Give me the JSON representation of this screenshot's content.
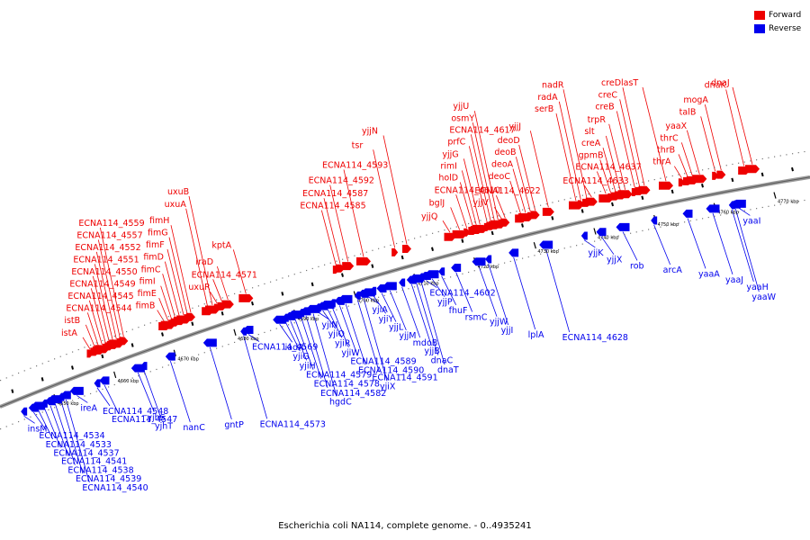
{
  "legend": {
    "forward": {
      "label": "Forward",
      "color": "#ee0000"
    },
    "reverse": {
      "label": "Reverse",
      "color": "#0000ee"
    }
  },
  "caption": "Escherichia coli NA114, complete genome. - 0..4935241",
  "axis": {
    "start_kbp": 4641,
    "end_kbp": 4776,
    "tick_labels": [
      {
        "kbp": 4650,
        "label": "4650 kbp"
      },
      {
        "kbp": 4660,
        "label": "4660 kbp"
      },
      {
        "kbp": 4670,
        "label": "4670 kbp"
      },
      {
        "kbp": 4680,
        "label": "4680 kbp"
      },
      {
        "kbp": 4690,
        "label": "4690 kbp"
      },
      {
        "kbp": 4700,
        "label": "4700 kbp"
      },
      {
        "kbp": 4710,
        "label": "4710 kbp"
      },
      {
        "kbp": 4720,
        "label": "4720 kbp"
      },
      {
        "kbp": 4730,
        "label": "4730 kbp"
      },
      {
        "kbp": 4740,
        "label": "4740 kbp"
      },
      {
        "kbp": 4750,
        "label": "4750 kbp"
      },
      {
        "kbp": 4760,
        "label": "4760 kbp"
      },
      {
        "kbp": 4770,
        "label": "4770 kbp"
      }
    ]
  },
  "forward_genes": [
    {
      "label": "istA",
      "kbp": 4656.0
    },
    {
      "label": "istB",
      "kbp": 4656.8
    },
    {
      "label": "ECNA114_4544",
      "kbp": 4657.4
    },
    {
      "label": "ECNA114_4545",
      "kbp": 4658.0
    },
    {
      "label": "ECNA114_4549",
      "kbp": 4658.6
    },
    {
      "label": "ECNA114_4550",
      "kbp": 4659.2
    },
    {
      "label": "ECNA114_4551",
      "kbp": 4659.8
    },
    {
      "label": "ECNA114_4552",
      "kbp": 4660.4
    },
    {
      "label": "ECNA114_4557",
      "kbp": 4661.0
    },
    {
      "label": "ECNA114_4559",
      "kbp": 4661.6
    },
    {
      "label": "fimB",
      "kbp": 4668.4
    },
    {
      "label": "fimE",
      "kbp": 4669.0
    },
    {
      "label": "fimI",
      "kbp": 4669.6
    },
    {
      "label": "fimC",
      "kbp": 4670.2
    },
    {
      "label": "fimD",
      "kbp": 4670.9
    },
    {
      "label": "fimF",
      "kbp": 4671.6
    },
    {
      "label": "fimG",
      "kbp": 4672.2
    },
    {
      "label": "fimH",
      "kbp": 4672.8
    },
    {
      "label": "uxuA",
      "kbp": 4675.6
    },
    {
      "label": "uxuB",
      "kbp": 4676.4
    },
    {
      "label": "uxuR",
      "kbp": 4677.2
    },
    {
      "label": "ECNA114_4571",
      "kbp": 4678.0
    },
    {
      "label": "iraD",
      "kbp": 4679.0
    },
    {
      "label": "kptA",
      "kbp": 4682.0
    },
    {
      "label": "ECNA114_4585",
      "kbp": 4697.0
    },
    {
      "label": "ECNA114_4587",
      "kbp": 4697.7
    },
    {
      "label": "ECNA114_4592",
      "kbp": 4699.0
    },
    {
      "label": "ECNA114_4593",
      "kbp": 4701.6
    },
    {
      "label": "tsr",
      "kbp": 4706.8
    },
    {
      "label": "yjjN",
      "kbp": 4708.8
    },
    {
      "label": "yjjQ",
      "kbp": 4716.0
    },
    {
      "label": "bglJ",
      "kbp": 4717.6
    },
    {
      "label": "ECNA114_4610",
      "kbp": 4718.8
    },
    {
      "label": "holD",
      "kbp": 4719.8
    },
    {
      "label": "rimI",
      "kbp": 4720.4
    },
    {
      "label": "yjjG",
      "kbp": 4721.0
    },
    {
      "label": "prfC",
      "kbp": 4722.2
    },
    {
      "label": "ECNA114_4617",
      "kbp": 4722.8
    },
    {
      "label": "osmY",
      "kbp": 4723.4
    },
    {
      "label": "yjjU",
      "kbp": 4724.0
    },
    {
      "label": "yjjV",
      "kbp": 4724.6
    },
    {
      "label": "ECNA114_4622",
      "kbp": 4725.2
    },
    {
      "label": "deoC",
      "kbp": 4727.8
    },
    {
      "label": "deoA",
      "kbp": 4728.6
    },
    {
      "label": "deoB",
      "kbp": 4729.4
    },
    {
      "label": "deoD",
      "kbp": 4730.2
    },
    {
      "label": "yjjJ",
      "kbp": 4732.4
    },
    {
      "label": "serB",
      "kbp": 4737.0
    },
    {
      "label": "radA",
      "kbp": 4737.8
    },
    {
      "label": "nadR",
      "kbp": 4738.8
    },
    {
      "label": "ECNA114_4633",
      "kbp": 4739.6
    },
    {
      "label": "ECNA114_4637",
      "kbp": 4742.0
    },
    {
      "label": "gpmB",
      "kbp": 4742.8
    },
    {
      "label": "creA",
      "kbp": 4743.6
    },
    {
      "label": "slt",
      "kbp": 4744.4
    },
    {
      "label": "trpR",
      "kbp": 4745.2
    },
    {
      "label": "creB",
      "kbp": 4746.8
    },
    {
      "label": "creC",
      "kbp": 4747.6
    },
    {
      "label": "creD",
      "kbp": 4748.4
    },
    {
      "label": "lasT",
      "kbp": 4752.0
    },
    {
      "label": "thrA",
      "kbp": 4754.6
    },
    {
      "label": "thrB",
      "kbp": 4755.6
    },
    {
      "label": "thrC",
      "kbp": 4756.4
    },
    {
      "label": "yaaX",
      "kbp": 4757.6
    },
    {
      "label": "talB",
      "kbp": 4760.2
    },
    {
      "label": "mogA",
      "kbp": 4761.2
    },
    {
      "label": "dnaK",
      "kbp": 4765.0
    },
    {
      "label": "dnaJ",
      "kbp": 4766.4
    }
  ],
  "reverse_genes": [
    {
      "label": "insM",
      "kbp": 4645.0
    },
    {
      "label": "ECNA114_4534",
      "kbp": 4646.6
    },
    {
      "label": "ECNA114_4533",
      "kbp": 4647.4
    },
    {
      "label": "ECNA114_4537",
      "kbp": 4648.4
    },
    {
      "label": "ECNA114_4541",
      "kbp": 4649.4
    },
    {
      "label": "ECNA114_4538",
      "kbp": 4650.2
    },
    {
      "label": "ECNA114_4539",
      "kbp": 4651.2
    },
    {
      "label": "ECNA114_4540",
      "kbp": 4652.0
    },
    {
      "label": "ireA",
      "kbp": 4653.8
    },
    {
      "label": "ECNA114_4548",
      "kbp": 4657.2
    },
    {
      "label": "ECNA114_4547",
      "kbp": 4658.4
    },
    {
      "label": "yjhS",
      "kbp": 4664.0
    },
    {
      "label": "yjhT",
      "kbp": 4665.0
    },
    {
      "label": "nanC",
      "kbp": 4669.4
    },
    {
      "label": "gntP",
      "kbp": 4676.0
    },
    {
      "label": "ECNA114_4573",
      "kbp": 4681.6
    },
    {
      "label": "ECNA114_4569",
      "kbp": 4682.4
    },
    {
      "label": "iadA",
      "kbp": 4687.6
    },
    {
      "label": "yjiG",
      "kbp": 4688.6
    },
    {
      "label": "yjiH",
      "kbp": 4689.4
    },
    {
      "label": "ECNA114_4579",
      "kbp": 4690.2
    },
    {
      "label": "ECNA114_4578",
      "kbp": 4691.2
    },
    {
      "label": "ECNA114_4582",
      "kbp": 4692.0
    },
    {
      "label": "hgdC",
      "kbp": 4693.2
    },
    {
      "label": "yjiN",
      "kbp": 4694.0
    },
    {
      "label": "yjiO",
      "kbp": 4694.8
    },
    {
      "label": "yjiR",
      "kbp": 4695.6
    },
    {
      "label": "yjiW",
      "kbp": 4696.4
    },
    {
      "label": "ECNA114_4589",
      "kbp": 4697.6
    },
    {
      "label": "ECNA114_4590",
      "kbp": 4698.6
    },
    {
      "label": "ECNA114_4591",
      "kbp": 4700.6
    },
    {
      "label": "yjiX",
      "kbp": 4701.6
    },
    {
      "label": "yjiA",
      "kbp": 4702.4
    },
    {
      "label": "yjiY",
      "kbp": 4703.2
    },
    {
      "label": "yjjL",
      "kbp": 4704.6
    },
    {
      "label": "yjjM",
      "kbp": 4706.0
    },
    {
      "label": "mdoB",
      "kbp": 4708.0
    },
    {
      "label": "yjjB",
      "kbp": 4709.6
    },
    {
      "label": "dnaC",
      "kbp": 4710.4
    },
    {
      "label": "dnaT",
      "kbp": 4711.2
    },
    {
      "label": "ECNA114_4602",
      "kbp": 4712.0
    },
    {
      "label": "yjjP",
      "kbp": 4713.0
    },
    {
      "label": "fhuF",
      "kbp": 4714.6
    },
    {
      "label": "rsmC",
      "kbp": 4717.0
    },
    {
      "label": "yjjW",
      "kbp": 4720.8
    },
    {
      "label": "yjjI",
      "kbp": 4722.4
    },
    {
      "label": "lplA",
      "kbp": 4726.6
    },
    {
      "label": "ECNA114_4628",
      "kbp": 4732.0
    },
    {
      "label": "yjjK",
      "kbp": 4738.4
    },
    {
      "label": "yjjX",
      "kbp": 4741.2
    },
    {
      "label": "rob",
      "kbp": 4744.8
    },
    {
      "label": "arcA",
      "kbp": 4750.0
    },
    {
      "label": "yaaA",
      "kbp": 4755.6
    },
    {
      "label": "yaaJ",
      "kbp": 4759.8
    },
    {
      "label": "yaaH",
      "kbp": 4763.0
    },
    {
      "label": "yaaW",
      "kbp": 4763.6
    },
    {
      "label": "yaaI",
      "kbp": 4764.2
    }
  ]
}
